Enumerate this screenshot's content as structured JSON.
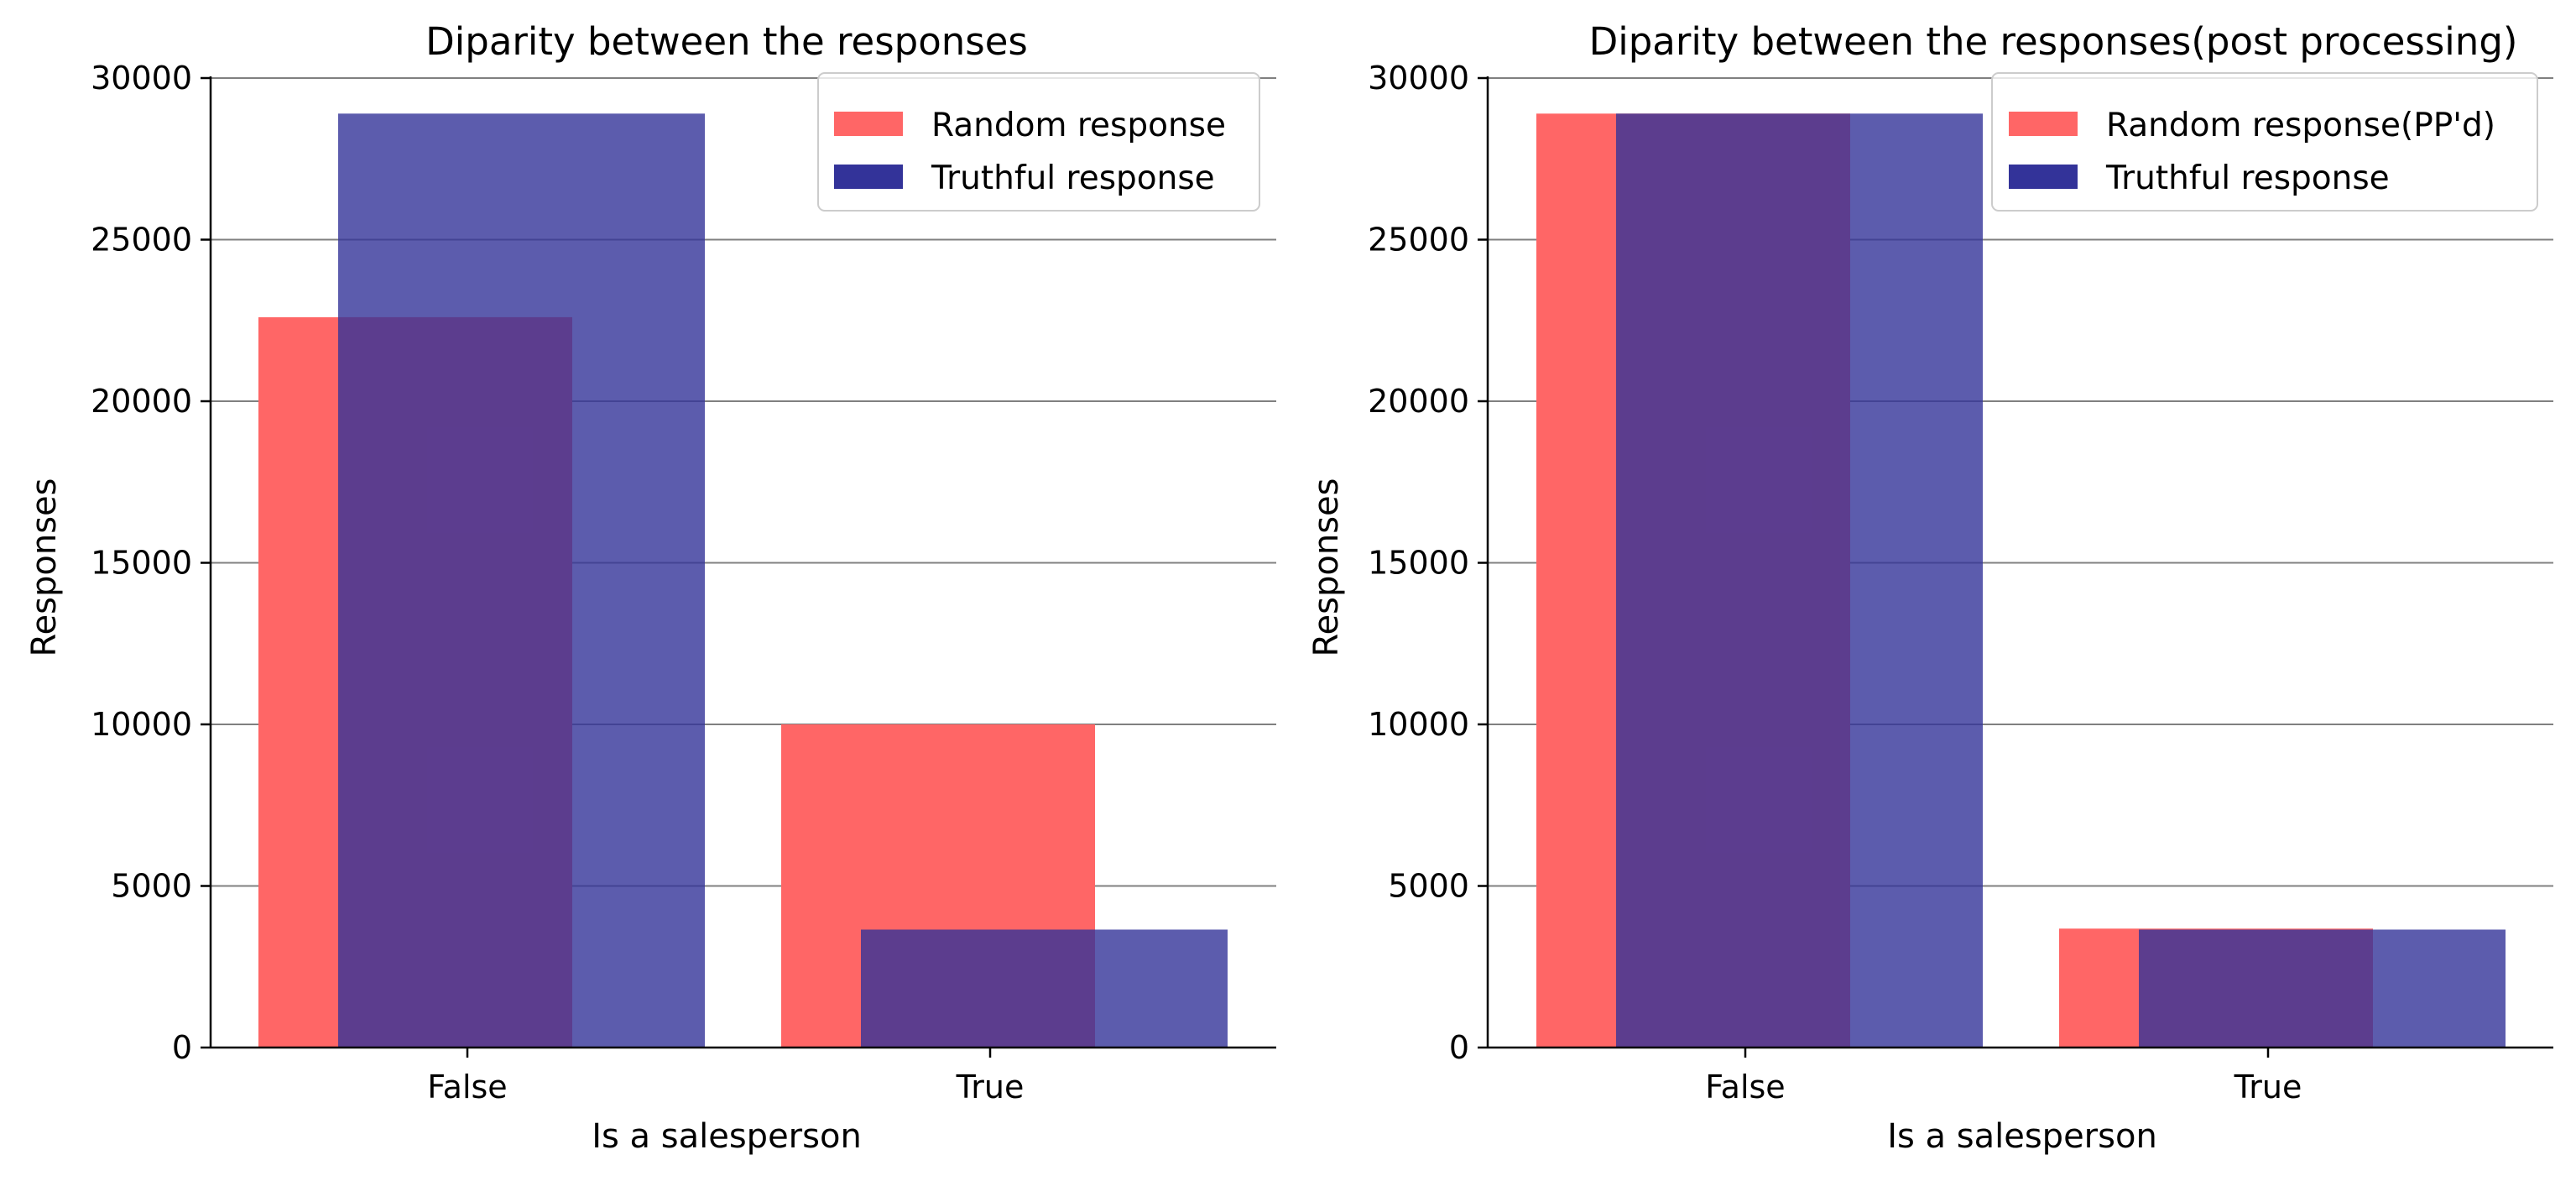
{
  "chart_data": [
    {
      "type": "bar",
      "title": "Diparity between the responses",
      "xlabel": "Is a salesperson",
      "ylabel": "Responses",
      "categories": [
        "False",
        "True"
      ],
      "ylim": [
        0,
        30000
      ],
      "yticks": [
        "0",
        "5000",
        "10000",
        "15000",
        "20000",
        "25000",
        "30000"
      ],
      "grid": "horizontal",
      "legend_position": "top-right",
      "series": [
        {
          "name": "Random response",
          "color": "#ff6666",
          "values": [
            22600,
            10000
          ]
        },
        {
          "name": "Truthful response",
          "color": "#333399",
          "values": [
            28900,
            3650
          ]
        }
      ]
    },
    {
      "type": "bar",
      "title": "Diparity between the responses(post processing)",
      "xlabel": "Is a salesperson",
      "ylabel": "Responses",
      "categories": [
        "False",
        "True"
      ],
      "ylim": [
        0,
        30000
      ],
      "yticks": [
        "0",
        "5000",
        "10000",
        "15000",
        "20000",
        "25000",
        "30000"
      ],
      "grid": "horizontal",
      "legend_position": "top-right",
      "series": [
        {
          "name": "Random response(PP'd)",
          "color": "#ff6666",
          "values": [
            28900,
            3680
          ]
        },
        {
          "name": "Truthful response",
          "color": "#333399",
          "values": [
            28900,
            3650
          ]
        }
      ]
    }
  ]
}
